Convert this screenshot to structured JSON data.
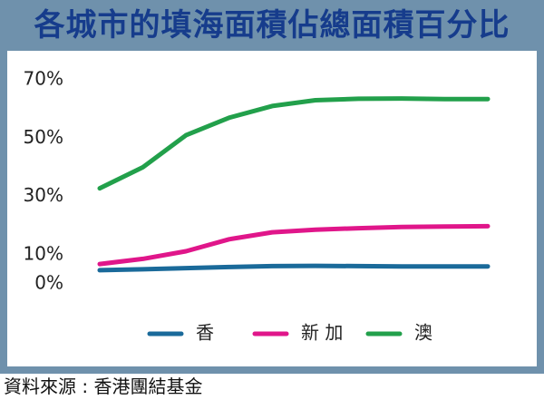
{
  "title": "各城市的填海面積佔總面積百分比",
  "source": "資料來源 : 香港團結基金",
  "chart_data": {
    "type": "line",
    "title": "各城市的填海面積佔總面積百分比",
    "xlabel": "",
    "ylabel": "",
    "ylim": [
      0,
      70
    ],
    "yticks": [
      0,
      10,
      30,
      50,
      70
    ],
    "ytick_labels": [
      "0%",
      "10%",
      "30%",
      "50%",
      "70%"
    ],
    "grid": false,
    "legend_position": "bottom",
    "x": [
      1,
      2,
      3,
      4,
      5,
      6,
      7,
      8,
      9,
      10
    ],
    "series": [
      {
        "name": "香",
        "color": "#1a6a9a",
        "values": [
          4.7,
          5.0,
          5.4,
          5.8,
          6.1,
          6.2,
          6.1,
          6.0,
          6.0,
          6.0
        ]
      },
      {
        "name": "新 加",
        "color": "#e0168a",
        "values": [
          6.8,
          8.6,
          11.2,
          15.3,
          17.7,
          18.6,
          19.1,
          19.5,
          19.7,
          19.8
        ]
      },
      {
        "name": "澳",
        "color": "#22a04b",
        "values": [
          32.8,
          40.0,
          51.0,
          57.0,
          61.0,
          63.0,
          63.5,
          63.6,
          63.4,
          63.4
        ]
      }
    ]
  }
}
